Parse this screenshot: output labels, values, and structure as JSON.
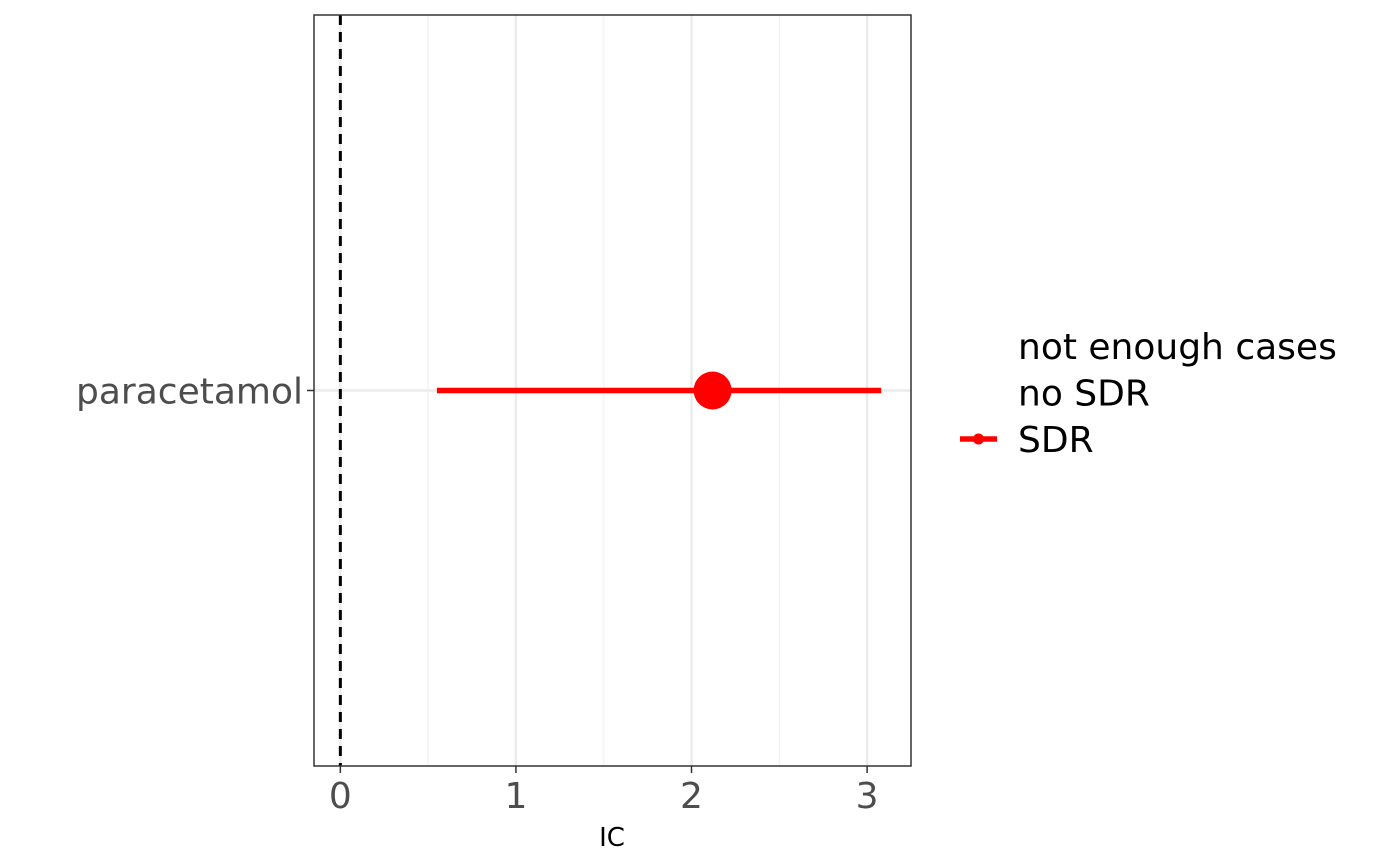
{
  "chart_data": {
    "type": "forest",
    "xlabel": "IC",
    "ylabel": "",
    "xlim": [
      -0.15,
      3.25
    ],
    "x_ticks": [
      0,
      1,
      2,
      3
    ],
    "x_minor_gridlines": [
      0.5,
      1.5,
      2.5
    ],
    "grid": true,
    "reference_line": {
      "x": 0,
      "style": "dashed",
      "color": "#000000"
    },
    "categories": [
      "paracetamol"
    ],
    "points": [
      {
        "label": "paracetamol",
        "estimate": 2.12,
        "lower": 0.55,
        "upper": 3.08,
        "group": "SDR"
      }
    ],
    "legend": {
      "position": "right",
      "entries": [
        {
          "label": "not enough cases",
          "color": null
        },
        {
          "label": "no SDR",
          "color": null
        },
        {
          "label": "SDR",
          "color": "#ff0000"
        }
      ]
    },
    "colors": {
      "SDR": "#ff0000",
      "panel_border": "#333333",
      "grid": "#ebebeb"
    }
  }
}
